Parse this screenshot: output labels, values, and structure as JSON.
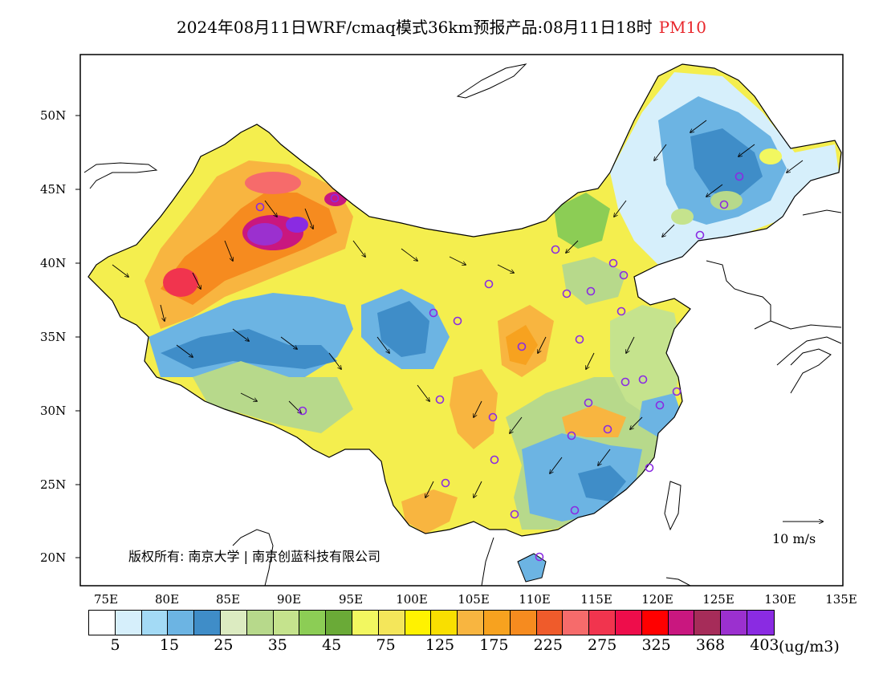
{
  "header": {
    "title": "2024年08月11日WRF/cmaq模式36km预报产品:08月11日18时",
    "parameter": "PM10",
    "param_color": "#e8262b"
  },
  "axes": {
    "lat_labels": [
      "50N",
      "45N",
      "40N",
      "35N",
      "30N",
      "25N",
      "20N"
    ],
    "lon_labels": [
      "75E",
      "80E",
      "85E",
      "90E",
      "95E",
      "100E",
      "105E",
      "110E",
      "115E",
      "120E",
      "125E",
      "130E",
      "135E"
    ]
  },
  "legend": {
    "colors": [
      "#ffffff",
      "#d6effb",
      "#a3daf5",
      "#6cb4e3",
      "#3f8dc8",
      "#dcebc1",
      "#b7d98b",
      "#c5e38d",
      "#8ccd55",
      "#6aaa37",
      "#f2f760",
      "#f4e65a",
      "#fff200",
      "#f9df00",
      "#f8b540",
      "#f7a21f",
      "#f68b1f",
      "#ef5b2b",
      "#f66b6b",
      "#f1344e",
      "#ee0d4b",
      "#ff0000",
      "#c9177f",
      "#a62c59",
      "#9b30cf",
      "#8a2be2"
    ],
    "labels": [
      "5",
      "15",
      "25",
      "35",
      "45",
      "75",
      "125",
      "175",
      "225",
      "275",
      "325",
      "368",
      "403"
    ],
    "unit": "(ug/m3)"
  },
  "footer": {
    "copyright": "版权所有: 南京大学 | 南京创蓝科技有限公司",
    "wind_scale": "10 m/s"
  }
}
